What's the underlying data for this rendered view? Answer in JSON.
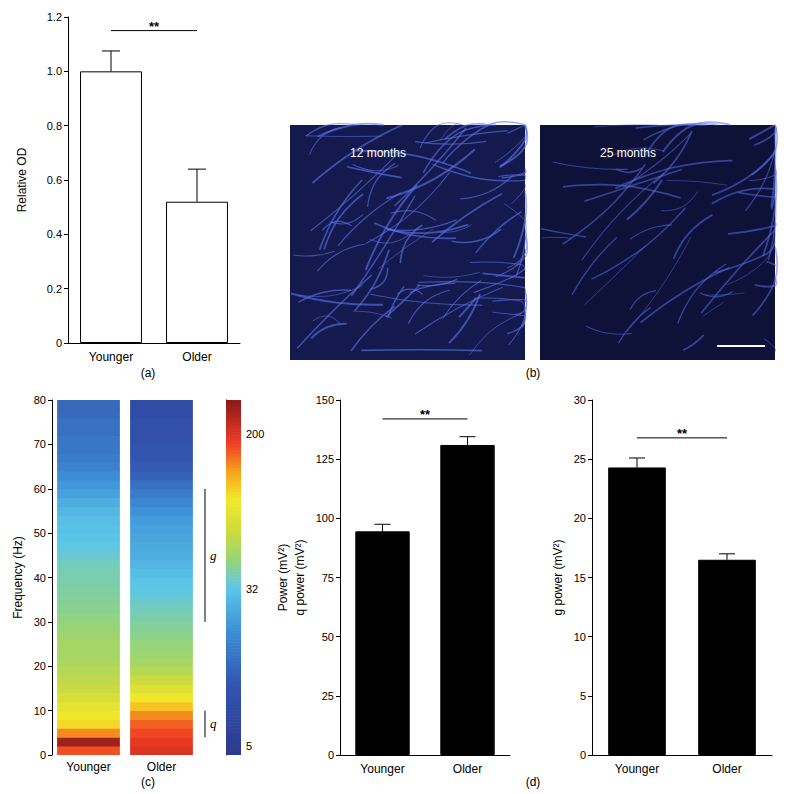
{
  "chart_data": [
    {
      "type": "bar",
      "title": "(a)",
      "categories": [
        "Younger",
        "Older"
      ],
      "values": [
        1.0,
        0.52
      ],
      "errors": [
        0.075,
        0.12
      ],
      "color": "#ffffff",
      "ylabel": "Relative OD",
      "ylim": [
        0,
        1.2
      ],
      "yticks": [
        0,
        0.2,
        0.4,
        0.6,
        0.8,
        {
          "value": 1,
          "label": "1.0"
        },
        1.2
      ],
      "grid": false,
      "significance": {
        "label": "**",
        "y": 1.15
      }
    },
    {
      "type": "image",
      "title": "(b)",
      "images": [
        {
          "label": "12 months"
        },
        {
          "label": "25 months"
        }
      ]
    },
    {
      "type": "heatmap",
      "title": "(c)",
      "x": [
        "Younger",
        "Older"
      ],
      "y_bins": [
        0,
        2,
        4,
        6,
        8,
        10,
        12,
        14,
        16,
        18,
        20,
        22,
        24,
        26,
        28,
        30,
        32,
        34,
        36,
        38,
        40,
        42,
        44,
        46,
        48,
        50,
        52,
        54,
        56,
        58,
        60,
        62,
        64,
        66,
        68,
        70,
        72,
        74,
        76,
        78,
        80
      ],
      "values": [
        [
          170,
          270,
          140,
          100,
          90,
          80,
          70,
          62,
          58,
          55,
          52,
          50,
          50,
          48,
          46,
          44,
          42,
          41,
          40,
          39,
          38,
          37,
          35,
          33,
          32,
          31,
          30,
          28,
          26,
          23,
          21,
          19,
          17,
          16,
          15,
          15,
          14,
          14,
          13,
          13
        ],
        [
          200,
          190,
          175,
          160,
          140,
          110,
          90,
          75,
          62,
          55,
          50,
          47,
          45,
          43,
          41,
          39,
          37,
          35,
          33,
          32,
          30,
          28,
          26,
          25,
          24,
          23,
          22,
          20,
          18,
          16,
          14,
          12,
          11,
          10,
          10,
          9,
          9,
          9,
          8,
          8
        ]
      ],
      "ylabel": "Frequency (Hz)",
      "ylim": [
        0,
        80
      ],
      "yticks": [
        0,
        10,
        20,
        30,
        40,
        50,
        60,
        70,
        80
      ],
      "colorbar": {
        "label": "Power (mV²)",
        "range": [
          4.5,
          300
        ],
        "ticks": [
          5,
          32,
          200
        ],
        "log": true
      },
      "annotations": [
        {
          "text": "g",
          "range": [
            30,
            60
          ]
        },
        {
          "text": "q",
          "range": [
            4,
            10
          ]
        }
      ]
    },
    {
      "type": "bar",
      "title": "(d)",
      "categories": [
        "Younger",
        "Older"
      ],
      "values": [
        94.5,
        131
      ],
      "errors": [
        3,
        3.5
      ],
      "color": "#000000",
      "ylabel": "q power (mV²)",
      "ylim": [
        0,
        150
      ],
      "yticks": [
        0,
        25,
        50,
        75,
        100,
        125,
        150
      ],
      "grid": false,
      "significance": {
        "label": "**",
        "y": 142
      }
    },
    {
      "type": "bar",
      "categories": [
        "Younger",
        "Older"
      ],
      "values": [
        24.3,
        16.5
      ],
      "errors": [
        0.8,
        0.5
      ],
      "color": "#000000",
      "ylabel": "g power (mV²)",
      "ylim": [
        0,
        30
      ],
      "yticks": [
        0,
        5,
        10,
        15,
        20,
        25,
        30
      ],
      "grid": false,
      "significance": {
        "label": "**",
        "y": 26.8
      }
    }
  ]
}
